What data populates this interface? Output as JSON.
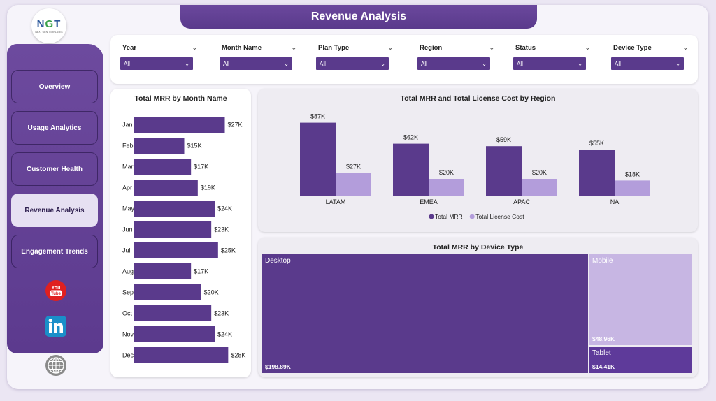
{
  "header": {
    "title": "Revenue Analysis"
  },
  "logo": {
    "mark_left": "N",
    "mark_mid": "G",
    "mark_right": "T",
    "tagline": "NEXT GEN TEMPLATES"
  },
  "sidebar": {
    "items": [
      {
        "label": "Overview",
        "active": false
      },
      {
        "label": "Usage Analytics",
        "active": false
      },
      {
        "label": "Customer Health",
        "active": false
      },
      {
        "label": "Revenue Analysis",
        "active": true
      },
      {
        "label": "Engagement Trends",
        "active": false
      }
    ],
    "icons": [
      "youtube-icon",
      "linkedin-icon",
      "globe-icon"
    ]
  },
  "filters": [
    {
      "label": "Year",
      "value": "All"
    },
    {
      "label": "Month Name",
      "value": "All"
    },
    {
      "label": "Plan Type",
      "value": "All"
    },
    {
      "label": "Region",
      "value": "All"
    },
    {
      "label": "Status",
      "value": "All"
    },
    {
      "label": "Device Type",
      "value": "All"
    }
  ],
  "colors": {
    "primary": "#5a3a8c",
    "secondary": "#b39ddb",
    "mobile": "#c7b6e3",
    "tablet": "#5e3a9a"
  },
  "chart_data": [
    {
      "type": "bar",
      "orientation": "horizontal",
      "title": "Total MRR by Month Name",
      "categories": [
        "Jan",
        "Feb",
        "Mar",
        "Apr",
        "May",
        "Jun",
        "Jul",
        "Aug",
        "Sep",
        "Oct",
        "Nov",
        "Dec"
      ],
      "values": [
        27,
        15,
        17,
        19,
        24,
        23,
        25,
        17,
        20,
        23,
        24,
        28
      ],
      "labels": [
        "$27K",
        "$15K",
        "$17K",
        "$19K",
        "$24K",
        "$23K",
        "$25K",
        "$17K",
        "$20K",
        "$23K",
        "$24K",
        "$28K"
      ],
      "xlim": [
        0,
        30
      ]
    },
    {
      "type": "bar",
      "orientation": "vertical",
      "title": "Total MRR and Total License Cost by Region",
      "categories": [
        "LATAM",
        "EMEA",
        "APAC",
        "NA"
      ],
      "series": [
        {
          "name": "Total MRR",
          "values": [
            87,
            62,
            59,
            55
          ],
          "labels": [
            "$87K",
            "$62K",
            "$59K",
            "$55K"
          ]
        },
        {
          "name": "Total License Cost",
          "values": [
            27,
            20,
            20,
            18
          ],
          "labels": [
            "$27K",
            "$20K",
            "$20K",
            "$18K"
          ]
        }
      ],
      "ylim": [
        0,
        100
      ],
      "legend": "bottom"
    },
    {
      "type": "treemap",
      "title": "Total MRR by Device Type",
      "items": [
        {
          "name": "Desktop",
          "value": 198.89,
          "label": "$198.89K"
        },
        {
          "name": "Mobile",
          "value": 48.96,
          "label": "$48.96K"
        },
        {
          "name": "Tablet",
          "value": 14.41,
          "label": "$14.41K"
        }
      ]
    }
  ]
}
